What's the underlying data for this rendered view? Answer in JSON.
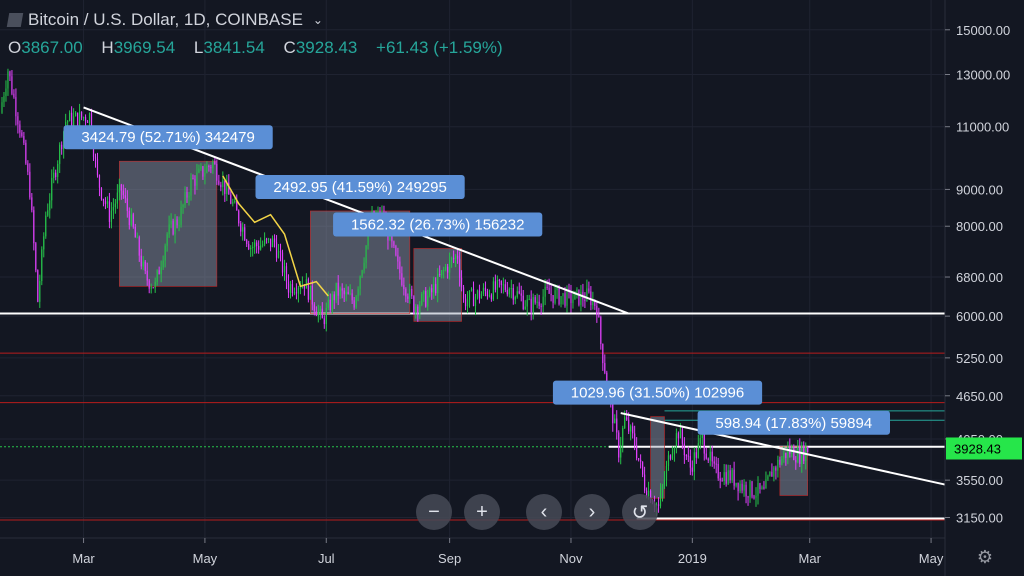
{
  "header": {
    "title": "Bitcoin / U.S. Dollar, 1D, COINBASE",
    "ohlc": {
      "o_label": "O",
      "o": "3867.00",
      "h_label": "H",
      "h": "3969.54",
      "l_label": "L",
      "l": "3841.54",
      "c_label": "C",
      "c": "3928.43",
      "change": "+61.43 (+1.59%)"
    }
  },
  "colors": {
    "background": "#131722",
    "grid": "#1f2331",
    "candle_up": "#26c24a",
    "candle_down": "#e040fb",
    "trendline": "#ffffff",
    "support_red": "#b71c1c",
    "last_price_bg": "#26e64a",
    "measure_box": "rgba(150,160,180,0.45)",
    "measure_label": "#5b8fd6",
    "curve_yellow": "#f2d447"
  },
  "chart_data": {
    "type": "candlestick",
    "title": "Bitcoin / U.S. Dollar, 1D, COINBASE",
    "y_scale": "log",
    "ylim": [
      2950,
      16500
    ],
    "xlim": [
      "2018-01-18",
      "2019-05-08"
    ],
    "y_ticks": [
      15000,
      13000,
      11000,
      9000,
      8000,
      6800,
      6000,
      5250,
      4650,
      4050,
      3550,
      3150
    ],
    "y_tick_labels": [
      "15000.00",
      "13000.00",
      "11000.00",
      "9000.00",
      "8000.00",
      "6800.00",
      "6000.00",
      "5250.00",
      "4650.00",
      "4050.00",
      "3550.00",
      "3150.00"
    ],
    "x_ticks": [
      {
        "date": "2018-03-01",
        "label": "Mar"
      },
      {
        "date": "2018-05-01",
        "label": "May"
      },
      {
        "date": "2018-07-01",
        "label": "Jul"
      },
      {
        "date": "2018-09-01",
        "label": "Sep"
      },
      {
        "date": "2018-11-01",
        "label": "Nov"
      },
      {
        "date": "2019-01-01",
        "label": "2019"
      },
      {
        "date": "2019-03-01",
        "label": "Mar"
      },
      {
        "date": "2019-05-01",
        "label": "May"
      }
    ],
    "last_price": 3928.43,
    "last_price_label": "3928.43",
    "path": [
      [
        "2018-01-18",
        11500
      ],
      [
        "2018-01-22",
        13200
      ],
      [
        "2018-01-28",
        11000
      ],
      [
        "2018-02-02",
        9000
      ],
      [
        "2018-02-06",
        6300
      ],
      [
        "2018-02-10",
        8300
      ],
      [
        "2018-02-20",
        11200
      ],
      [
        "2018-03-04",
        11400
      ],
      [
        "2018-03-08",
        9300
      ],
      [
        "2018-03-14",
        8300
      ],
      [
        "2018-03-20",
        9000
      ],
      [
        "2018-03-26",
        7900
      ],
      [
        "2018-04-01",
        6800
      ],
      [
        "2018-04-06",
        6600
      ],
      [
        "2018-04-12",
        7800
      ],
      [
        "2018-04-18",
        8200
      ],
      [
        "2018-04-24",
        9200
      ],
      [
        "2018-05-05",
        9800
      ],
      [
        "2018-05-14",
        8700
      ],
      [
        "2018-05-24",
        7500
      ],
      [
        "2018-06-05",
        7600
      ],
      [
        "2018-06-12",
        6600
      ],
      [
        "2018-06-20",
        6700
      ],
      [
        "2018-06-29",
        5900
      ],
      [
        "2018-07-06",
        6500
      ],
      [
        "2018-07-15",
        6300
      ],
      [
        "2018-07-24",
        8200
      ],
      [
        "2018-07-30",
        8200
      ],
      [
        "2018-08-06",
        7000
      ],
      [
        "2018-08-14",
        6200
      ],
      [
        "2018-08-22",
        6400
      ],
      [
        "2018-08-30",
        7000
      ],
      [
        "2018-09-05",
        7300
      ],
      [
        "2018-09-08",
        6300
      ],
      [
        "2018-09-20",
        6500
      ],
      [
        "2018-10-01",
        6600
      ],
      [
        "2018-10-11",
        6200
      ],
      [
        "2018-10-20",
        6450
      ],
      [
        "2018-11-01",
        6350
      ],
      [
        "2018-11-10",
        6400
      ],
      [
        "2018-11-14",
        6200
      ],
      [
        "2018-11-16",
        5500
      ],
      [
        "2018-11-20",
        4700
      ],
      [
        "2018-11-25",
        3900
      ],
      [
        "2018-11-28",
        4300
      ],
      [
        "2018-12-03",
        4000
      ],
      [
        "2018-12-08",
        3500
      ],
      [
        "2018-12-15",
        3250
      ],
      [
        "2018-12-21",
        3900
      ],
      [
        "2018-12-25",
        4150
      ],
      [
        "2018-12-31",
        3700
      ],
      [
        "2019-01-06",
        4050
      ],
      [
        "2019-01-12",
        3650
      ],
      [
        "2019-01-20",
        3600
      ],
      [
        "2019-01-28",
        3450
      ],
      [
        "2019-02-06",
        3400
      ],
      [
        "2019-02-10",
        3650
      ],
      [
        "2019-02-18",
        3900
      ],
      [
        "2019-02-24",
        3850
      ],
      [
        "2019-02-28",
        3928.43
      ]
    ],
    "horizontal_lines": [
      {
        "price": 6050,
        "color": "#ffffff",
        "style": "solid"
      },
      {
        "price": 5330,
        "color": "#b71c1c",
        "style": "solid"
      },
      {
        "price": 4550,
        "color": "#b71c1c",
        "style": "solid"
      },
      {
        "price": 4430,
        "color": "#26a69a",
        "style": "solid",
        "from": "2018-12-18"
      },
      {
        "price": 4300,
        "color": "#26a69a",
        "style": "solid",
        "from": "2018-12-18"
      },
      {
        "price": 3950,
        "color": "#26c24a",
        "style": "dotted"
      },
      {
        "price": 3950,
        "color": "#ffffff",
        "style": "solid",
        "from": "2018-11-20"
      },
      {
        "price": 3140,
        "color": "#ffffff",
        "style": "solid",
        "from": "2018-12-04"
      },
      {
        "price": 3125,
        "color": "#b71c1c",
        "style": "solid"
      }
    ],
    "trendlines": [
      {
        "from": [
          "2018-03-01",
          11700
        ],
        "to": [
          "2018-11-30",
          6050
        ]
      },
      {
        "from": [
          "2018-11-26",
          4400
        ],
        "to": [
          "2019-05-08",
          3500
        ]
      }
    ],
    "measure_boxes": [
      {
        "x1": "2018-03-19",
        "x2": "2018-05-07",
        "y1": 6600,
        "y2": 9850,
        "label": "3424.79 (52.71%) 342479"
      },
      {
        "x1": "2018-06-23",
        "x2": "2018-08-12",
        "y1": 6050,
        "y2": 8400,
        "label": "2492.95 (41.59%) 249295"
      },
      {
        "x1": "2018-08-14",
        "x2": "2018-09-07",
        "y1": 5900,
        "y2": 7450,
        "label": "1562.32 (26.73%) 156232"
      },
      {
        "x1": "2018-12-11",
        "x2": "2018-12-18",
        "y1": 3350,
        "y2": 4350,
        "label": "1029.96 (31.50%) 102996"
      },
      {
        "x1": "2019-02-14",
        "x2": "2019-02-28",
        "y1": 3380,
        "y2": 3950,
        "label": "598.94 (17.83%) 59894"
      }
    ],
    "annotation_curve": [
      [
        "2018-05-10",
        9400
      ],
      [
        "2018-05-18",
        8600
      ],
      [
        "2018-05-26",
        8100
      ],
      [
        "2018-06-03",
        8300
      ],
      [
        "2018-06-10",
        7800
      ],
      [
        "2018-06-18",
        6600
      ],
      [
        "2018-06-26",
        6700
      ],
      [
        "2018-07-02",
        6400
      ]
    ]
  },
  "controls": {
    "zoom_out": "−",
    "zoom_in": "+",
    "scroll_left": "‹",
    "scroll_right": "›",
    "reset": "↺",
    "settings_icon": "gear-icon",
    "dropdown_icon": "chevron-down-icon"
  }
}
